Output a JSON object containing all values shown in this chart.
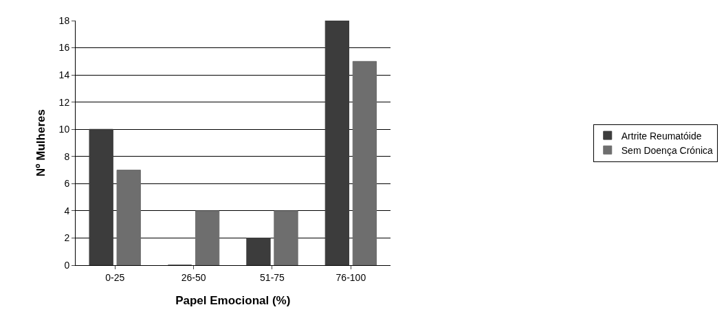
{
  "chart_data": {
    "type": "bar",
    "xlabel": "Papel Emocional (%)",
    "ylabel": "Nº Mulheres",
    "categories": [
      "0-25",
      "26-50",
      "51-75",
      "76-100"
    ],
    "series": [
      {
        "name": "Artrite Reumatóide",
        "color": "#3c3c3c",
        "values": [
          10,
          0,
          2,
          18
        ]
      },
      {
        "name": "Sem Doença Crónica",
        "color": "#6e6e6e",
        "values": [
          7,
          4,
          4,
          15
        ]
      }
    ],
    "ylim": [
      0,
      18
    ],
    "yticks": [
      0,
      2,
      4,
      6,
      8,
      10,
      12,
      14,
      16,
      18
    ],
    "grid": "y",
    "legend": "right"
  }
}
